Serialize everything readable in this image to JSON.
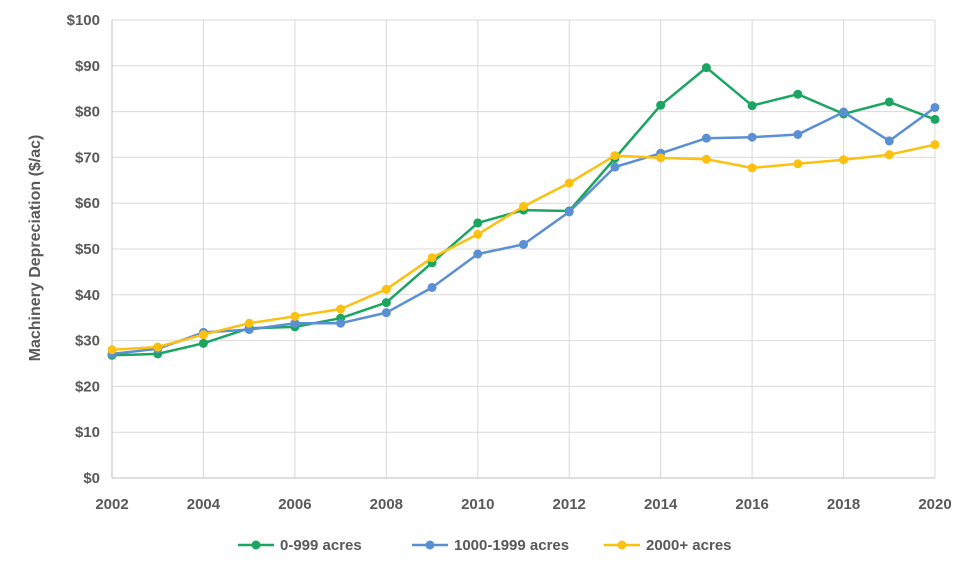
{
  "chart_data": {
    "type": "line",
    "ylabel": "Machinery Depreciation ($/ac)",
    "xlabel": "",
    "xlim": [
      2002,
      2020
    ],
    "ylim": [
      0,
      100
    ],
    "x_ticks": [
      2002,
      2004,
      2006,
      2008,
      2010,
      2012,
      2014,
      2016,
      2018,
      2020
    ],
    "y_ticks": [
      0,
      10,
      20,
      30,
      40,
      50,
      60,
      70,
      80,
      90,
      100
    ],
    "y_tick_labels": [
      "$0",
      "$10",
      "$20",
      "$30",
      "$40",
      "$50",
      "$60",
      "$70",
      "$80",
      "$90",
      "$100"
    ],
    "grid": true,
    "legend_position": "bottom",
    "x": [
      2002,
      2003,
      2004,
      2005,
      2006,
      2007,
      2008,
      2009,
      2010,
      2011,
      2012,
      2013,
      2014,
      2015,
      2016,
      2017,
      2018,
      2019,
      2020
    ],
    "series": [
      {
        "name": "0-999 acres",
        "color": "#1aa561",
        "values": [
          26.8,
          27.1,
          29.4,
          32.7,
          33.0,
          34.9,
          38.3,
          47.0,
          55.7,
          58.5,
          58.3,
          69.8,
          81.4,
          89.6,
          81.3,
          83.8,
          79.5,
          82.1,
          78.3
        ]
      },
      {
        "name": "1000-1999 acres",
        "color": "#5b8fd4",
        "values": [
          27.1,
          28.2,
          31.8,
          32.4,
          33.8,
          33.8,
          36.1,
          41.6,
          48.9,
          51.0,
          58.1,
          67.9,
          70.9,
          74.2,
          74.4,
          75.0,
          79.9,
          73.6,
          80.9
        ]
      },
      {
        "name": "2000+ acres",
        "color": "#fcc010",
        "values": [
          28.0,
          28.6,
          31.3,
          33.8,
          35.3,
          36.9,
          41.2,
          48.1,
          53.2,
          59.3,
          64.4,
          70.4,
          69.9,
          69.6,
          67.7,
          68.6,
          69.5,
          70.6,
          72.8
        ]
      }
    ]
  }
}
